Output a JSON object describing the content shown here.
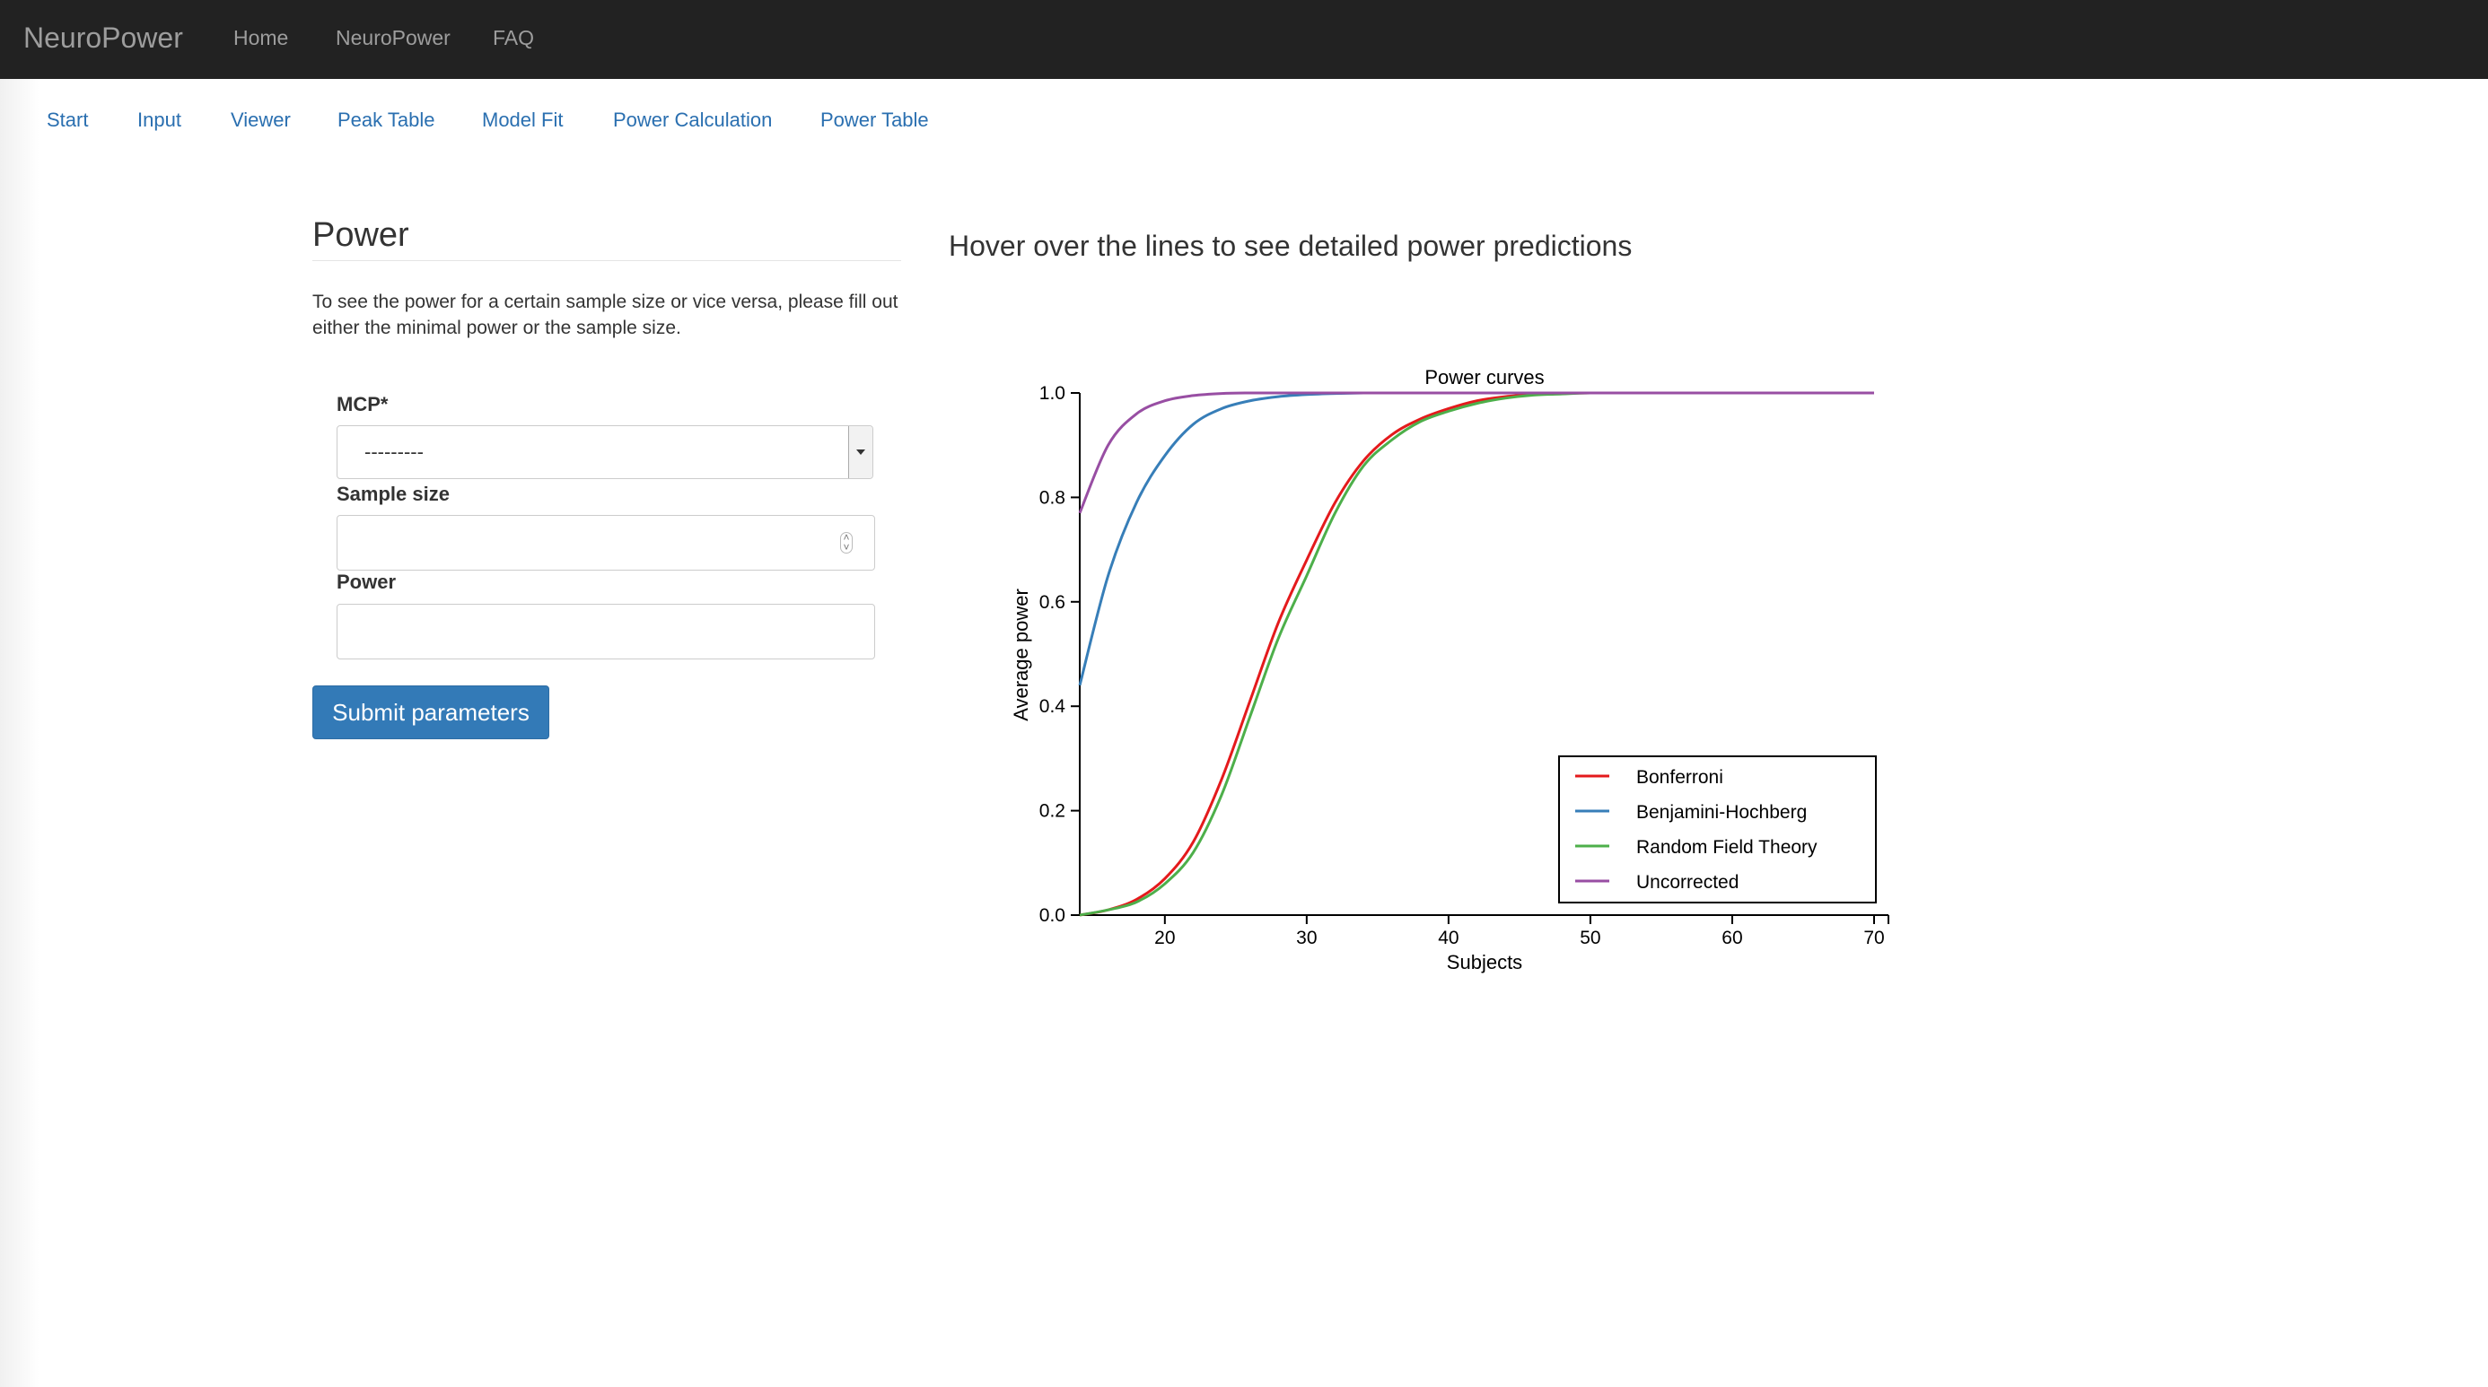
{
  "navbar": {
    "brand": "NeuroPower",
    "links": [
      "Home",
      "NeuroPower",
      "FAQ"
    ]
  },
  "subnav": {
    "tabs": [
      "Start",
      "Input",
      "Viewer",
      "Peak Table",
      "Model Fit",
      "Power Calculation",
      "Power Table"
    ]
  },
  "form": {
    "title": "Power",
    "help_text": "To see the power for a certain sample size or vice versa, please fill out either the minimal power or the sample size.",
    "mcp_label": "MCP*",
    "mcp_value": "---------",
    "sample_size_label": "Sample size",
    "sample_size_value": "",
    "power_label": "Power",
    "power_value": "",
    "submit_label": "Submit parameters"
  },
  "chart_heading": "Hover over the lines to see detailed power predictions",
  "colors": {
    "navbar_bg": "#222222",
    "link": "#2a6fb0",
    "button": "#337ab7",
    "bonferroni": "#e41a1c",
    "bh": "#377eb8",
    "rft": "#4daf4a",
    "uncorrected": "#984ea3"
  },
  "chart_data": {
    "type": "line",
    "title": "Power curves",
    "xlabel": "Subjects",
    "ylabel": "Average power",
    "xlim": [
      14,
      70
    ],
    "ylim": [
      0,
      1
    ],
    "x_ticks": [
      20,
      30,
      40,
      50,
      60,
      70
    ],
    "y_ticks": [
      "0.0",
      "0.2",
      "0.4",
      "0.6",
      "0.8",
      "1.0"
    ],
    "legend_position": "bottom-right",
    "x": [
      14,
      16,
      18,
      20,
      22,
      24,
      26,
      28,
      30,
      32,
      34,
      36,
      38,
      40,
      42,
      44,
      46,
      48,
      50,
      55,
      60,
      65,
      70
    ],
    "series": [
      {
        "name": "Bonferroni",
        "color": "#e41a1c",
        "values": [
          0.0,
          0.01,
          0.03,
          0.07,
          0.14,
          0.26,
          0.41,
          0.56,
          0.68,
          0.79,
          0.87,
          0.92,
          0.95,
          0.97,
          0.985,
          0.993,
          0.997,
          0.999,
          1.0,
          1.0,
          1.0,
          1.0,
          1.0
        ]
      },
      {
        "name": "Benjamini-Hochberg",
        "color": "#377eb8",
        "values": [
          0.44,
          0.65,
          0.79,
          0.88,
          0.94,
          0.97,
          0.985,
          0.993,
          0.997,
          0.999,
          1.0,
          1.0,
          1.0,
          1.0,
          1.0,
          1.0,
          1.0,
          1.0,
          1.0,
          1.0,
          1.0,
          1.0,
          1.0
        ]
      },
      {
        "name": "Random Field Theory",
        "color": "#4daf4a",
        "values": [
          0.0,
          0.01,
          0.025,
          0.06,
          0.12,
          0.23,
          0.38,
          0.53,
          0.65,
          0.77,
          0.86,
          0.91,
          0.945,
          0.965,
          0.98,
          0.99,
          0.996,
          0.998,
          1.0,
          1.0,
          1.0,
          1.0,
          1.0
        ]
      },
      {
        "name": "Uncorrected",
        "color": "#984ea3",
        "values": [
          0.77,
          0.9,
          0.96,
          0.985,
          0.995,
          0.999,
          1.0,
          1.0,
          1.0,
          1.0,
          1.0,
          1.0,
          1.0,
          1.0,
          1.0,
          1.0,
          1.0,
          1.0,
          1.0,
          1.0,
          1.0,
          1.0,
          1.0
        ]
      }
    ]
  }
}
